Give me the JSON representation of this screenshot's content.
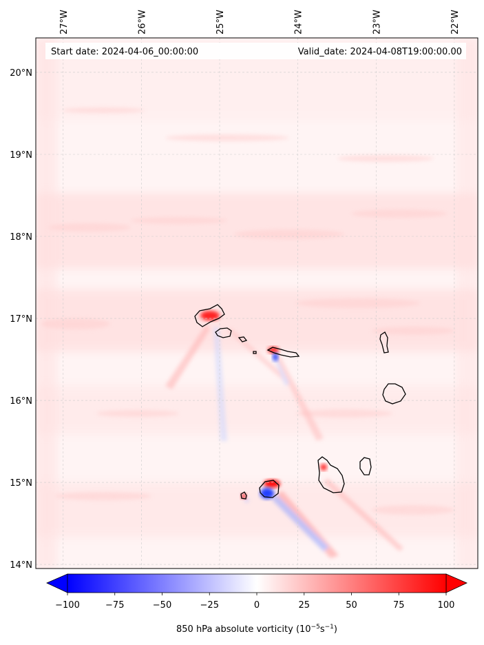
{
  "header": {
    "start_date": "Start date: 2024-04-06_00:00:00",
    "valid_date": "Valid_date: 2024-04-08T19:00:00.00"
  },
  "map": {
    "lon_labels": [
      "27°W",
      "26°W",
      "25°W",
      "24°W",
      "23°W",
      "22°W"
    ],
    "lat_labels": [
      "20°N",
      "19°N",
      "18°N",
      "17°N",
      "16°N",
      "15°N",
      "14°N"
    ],
    "lon_values": [
      -27,
      -26,
      -25,
      -24,
      -23,
      -22
    ],
    "lat_values": [
      20,
      19,
      18,
      17,
      16,
      15,
      14
    ],
    "extent": {
      "lon": [
        -27.35,
        -21.7
      ],
      "lat": [
        13.95,
        20.42
      ]
    }
  },
  "colorbar": {
    "label_prefix": "850 hPa absolute vorticity (10",
    "label_sup1": "−5",
    "label_mid": "s",
    "label_sup2": "−1",
    "label_suffix": ")",
    "ticks": [
      "−100",
      "−75",
      "−50",
      "−25",
      "0",
      "25",
      "50",
      "75",
      "100"
    ],
    "tick_values": [
      -100,
      -75,
      -50,
      -25,
      0,
      25,
      50,
      75,
      100
    ],
    "range": [
      -100,
      100
    ],
    "colormap": "bwr",
    "extend": "both"
  },
  "colors": {
    "negative": "#0000ff",
    "zero": "#ffffff",
    "positive": "#ff0000",
    "grid": "#cccccc"
  }
}
